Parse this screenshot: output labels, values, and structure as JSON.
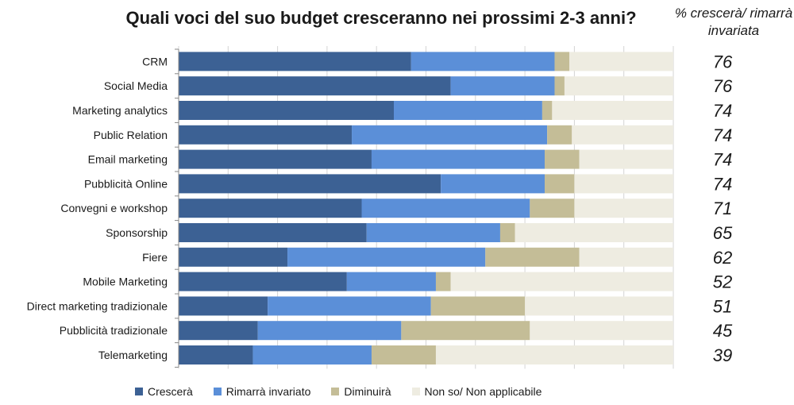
{
  "chart_data": {
    "type": "bar",
    "orientation": "horizontal",
    "stacked": true,
    "title": "Quali voci del suo budget cresceranno nei prossimi 2-3 anni?",
    "side_header": "% crescerà/ rimarrà invariata",
    "categories": [
      "CRM",
      "Social Media",
      "Marketing analytics",
      "Public Relation",
      "Email marketing",
      "Pubblicità Online",
      "Convegni e workshop",
      "Sponsorship",
      "Fiere",
      "Mobile Marketing",
      "Direct marketing tradizionale",
      "Pubblicità tradizionale",
      "Telemarketing"
    ],
    "series": [
      {
        "name": "Crescerà",
        "color": "#3c6194",
        "values": [
          47,
          55,
          43.5,
          35,
          39,
          53,
          37,
          38,
          22,
          34,
          18,
          16,
          15
        ]
      },
      {
        "name": "Rimarrà invariato",
        "color": "#5b8fd8",
        "values": [
          29,
          21,
          30,
          39.5,
          35,
          21,
          34,
          27,
          40,
          18,
          33,
          29,
          24
        ]
      },
      {
        "name": "Diminuirà",
        "color": "#c4bd97",
        "values": [
          3,
          2,
          2,
          5,
          7,
          6,
          9,
          3,
          19,
          3,
          19,
          26,
          13
        ]
      },
      {
        "name": "Non so/ Non applicabile",
        "color": "#eeece1",
        "values": [
          21,
          22,
          24.5,
          20.5,
          19,
          20,
          20,
          32,
          19,
          45,
          30,
          29,
          48
        ]
      }
    ],
    "side_values": [
      "76",
      "76",
      "74",
      "74",
      "74",
      "74",
      "71",
      "65",
      "62",
      "52",
      "51",
      "45",
      "39"
    ],
    "xlim": [
      0,
      100
    ],
    "grid": true,
    "legend_position": "bottom"
  }
}
